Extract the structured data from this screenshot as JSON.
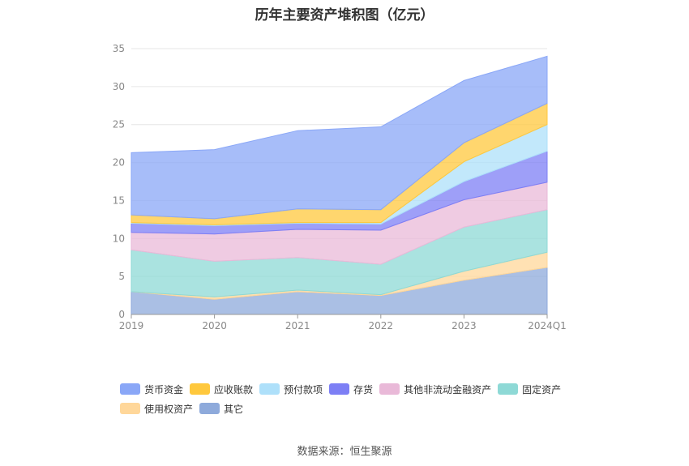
{
  "chart_data": {
    "type": "area",
    "title": "历年主要资产堆积图（亿元）",
    "categories": [
      "2019",
      "2020",
      "2021",
      "2022",
      "2023",
      "2024Q1"
    ],
    "y_ticks": [
      "0",
      "5",
      "10",
      "15",
      "20",
      "25",
      "30",
      "35"
    ],
    "ylim": [
      0,
      35
    ],
    "grid": true,
    "legend_position": "bottom",
    "series": [
      {
        "name": "其它",
        "color": "#8eaadb",
        "values": [
          3.0,
          2.0,
          3.0,
          2.5,
          4.5,
          6.2
        ]
      },
      {
        "name": "使用权资产",
        "color": "#ffd79a",
        "values": [
          0.0,
          0.3,
          0.2,
          0.1,
          1.2,
          2.0
        ]
      },
      {
        "name": "固定资产",
        "color": "#8ed9d6",
        "values": [
          5.5,
          4.7,
          4.3,
          4.0,
          5.8,
          5.6
        ]
      },
      {
        "name": "其他非流动金融资产",
        "color": "#e9b9d8",
        "values": [
          2.3,
          3.6,
          3.7,
          4.5,
          3.6,
          3.6
        ]
      },
      {
        "name": "存货",
        "color": "#7d7ff5",
        "values": [
          1.2,
          1.1,
          0.8,
          0.8,
          2.4,
          4.1
        ]
      },
      {
        "name": "预付款项",
        "color": "#aee0fa",
        "values": [
          0.1,
          0.1,
          0.1,
          0.2,
          2.6,
          3.5
        ]
      },
      {
        "name": "应收账款",
        "color": "#ffc83d",
        "values": [
          1.0,
          0.8,
          1.8,
          1.7,
          2.5,
          2.8
        ]
      },
      {
        "name": "货币资金",
        "color": "#8aa7f7",
        "values": [
          8.2,
          9.1,
          10.3,
          10.9,
          8.2,
          6.2
        ]
      }
    ],
    "legend_order": [
      "货币资金",
      "应收账款",
      "预付款项",
      "存货",
      "其他非流动金融资产",
      "固定资产",
      "使用权资产",
      "其它"
    ]
  },
  "source_note": "数据来源：恒生聚源"
}
